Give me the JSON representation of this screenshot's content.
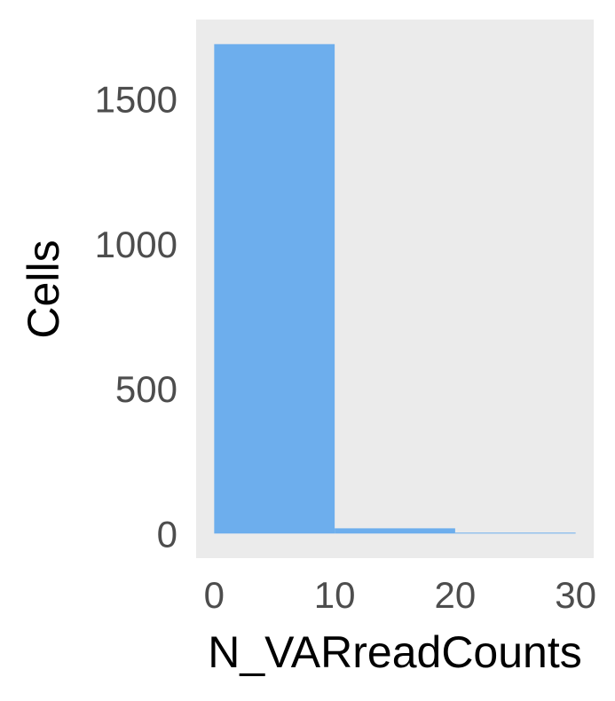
{
  "chart_data": {
    "type": "bar",
    "title": "",
    "xlabel": "N_VARreadCounts",
    "ylabel": "Cells",
    "bins": [
      {
        "x0": 0,
        "x1": 10,
        "value": 1690
      },
      {
        "x0": 10,
        "x1": 20,
        "value": 18
      },
      {
        "x0": 20,
        "x1": 30,
        "value": 3
      }
    ],
    "xlim": [
      -1.5,
      31.5
    ],
    "ylim": [
      -85,
      1775
    ],
    "x_ticks": [
      0,
      10,
      20,
      30
    ],
    "x_tick_labels": [
      "0",
      "10",
      "20",
      "30"
    ],
    "y_ticks": [
      0,
      500,
      1000,
      1500
    ],
    "y_tick_labels": [
      "0",
      "500",
      "1000",
      "1500"
    ],
    "grid": false,
    "legend": "none",
    "colors": {
      "bar": "#6daeed",
      "panel_background": "#ebebeb",
      "tick_label": "#4d4d4d",
      "axis_title": "#000000"
    }
  }
}
